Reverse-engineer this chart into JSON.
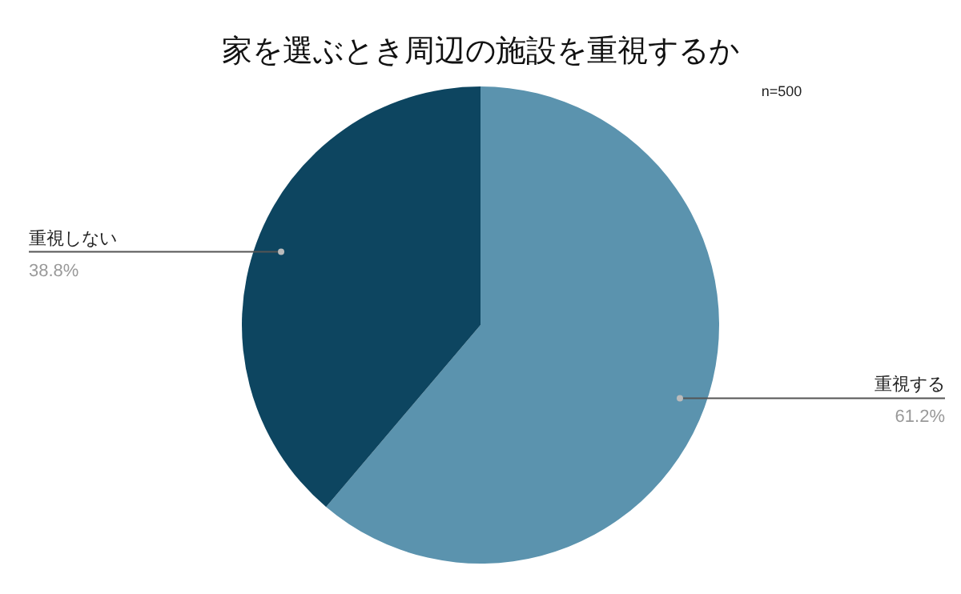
{
  "chart_data": {
    "type": "pie",
    "title": "家を選ぶとき周辺の施設を重視するか",
    "annotations": [
      "n=500"
    ],
    "categories": [
      "重視する",
      "重視しない"
    ],
    "values": [
      61.2,
      38.8
    ],
    "colors": [
      "#5b93ae",
      "#0d4560"
    ],
    "value_labels": [
      "61.2%",
      "38.8%"
    ]
  }
}
